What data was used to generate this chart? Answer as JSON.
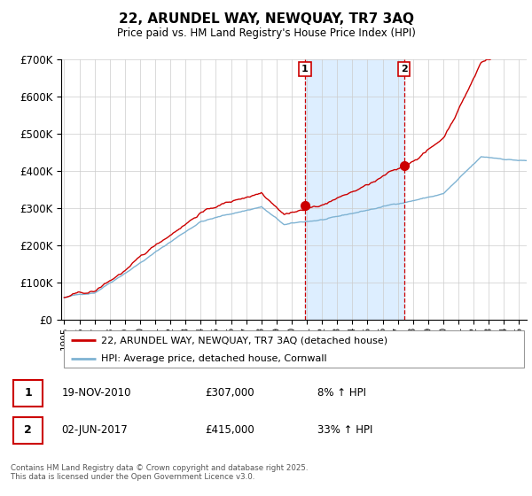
{
  "title": "22, ARUNDEL WAY, NEWQUAY, TR7 3AQ",
  "subtitle": "Price paid vs. HM Land Registry's House Price Index (HPI)",
  "legend_line1": "22, ARUNDEL WAY, NEWQUAY, TR7 3AQ (detached house)",
  "legend_line2": "HPI: Average price, detached house, Cornwall",
  "marker1_date": "19-NOV-2010",
  "marker1_price": 307000,
  "marker1_hpi": "8% ↑ HPI",
  "marker1_x": 2010.88,
  "marker2_date": "02-JUN-2017",
  "marker2_price": 415000,
  "marker2_hpi": "33% ↑ HPI",
  "marker2_x": 2017.42,
  "footnote": "Contains HM Land Registry data © Crown copyright and database right 2025.\nThis data is licensed under the Open Government Licence v3.0.",
  "property_color": "#cc0000",
  "hpi_color": "#7fb3d3",
  "shaded_region_color": "#ddeeff",
  "vline_color": "#cc0000",
  "ylim_max": 700000,
  "xlim_min": 1994.8,
  "xlim_max": 2025.5
}
